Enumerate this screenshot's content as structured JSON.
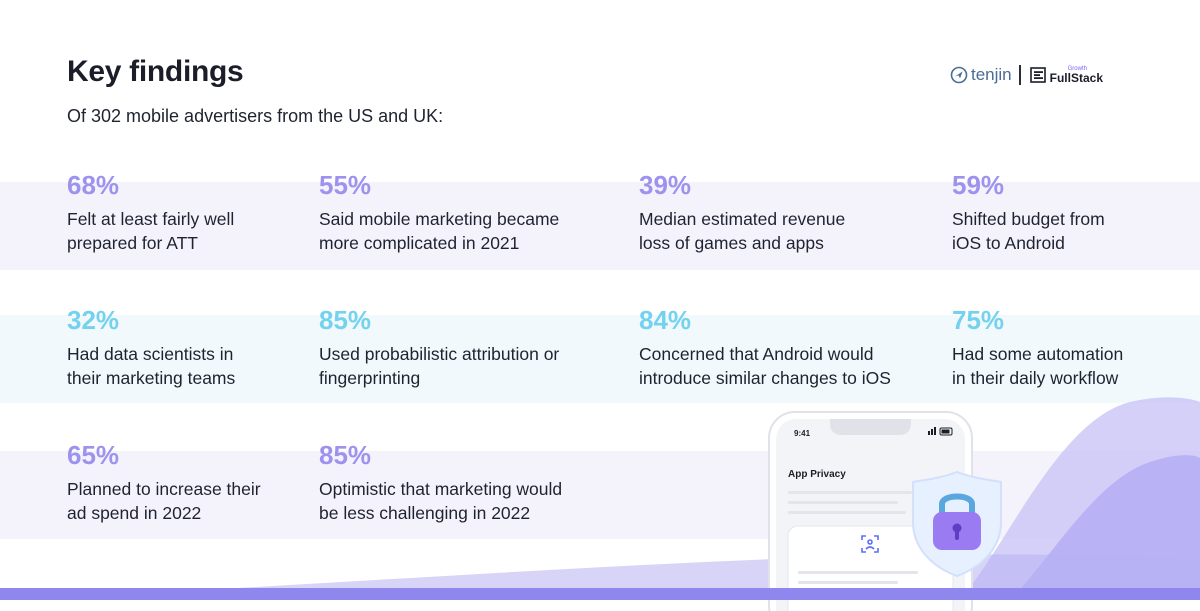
{
  "header": {
    "title": "Key findings",
    "subtitle": "Of 302 mobile advertisers from the US and UK:"
  },
  "brand": {
    "tenjin_label": "tenjin",
    "fullstack_small": "Growth",
    "fullstack_big": "FullStack"
  },
  "findings": [
    {
      "percent": "68%",
      "color": "purple",
      "line1": "Felt at least fairly well",
      "line2": "prepared for ATT"
    },
    {
      "percent": "55%",
      "color": "purple",
      "line1": "Said mobile marketing became",
      "line2": "more complicated in 2021"
    },
    {
      "percent": "39%",
      "color": "purple",
      "line1": "Median estimated revenue",
      "line2": "loss of games and apps"
    },
    {
      "percent": "59%",
      "color": "purple",
      "line1": "Shifted budget from",
      "line2": "iOS to Android"
    },
    {
      "percent": "32%",
      "color": "cyan",
      "line1": "Had data scientists in",
      "line2": "their marketing teams"
    },
    {
      "percent": "85%",
      "color": "cyan",
      "line1": "Used probabilistic attribution or",
      "line2": "fingerprinting"
    },
    {
      "percent": "84%",
      "color": "cyan",
      "line1": "Concerned that Android would",
      "line2": "introduce similar changes to iOS"
    },
    {
      "percent": "75%",
      "color": "cyan",
      "line1": "Had some automation",
      "line2": "in their daily workflow"
    },
    {
      "percent": "65%",
      "color": "purple",
      "line1": "Planned to increase their",
      "line2": "ad spend in 2022"
    },
    {
      "percent": "85%",
      "color": "purple",
      "line1": "Optimistic that marketing would",
      "line2": "be less challenging in 2022"
    }
  ],
  "phone": {
    "time": "9:41",
    "screen_title": "App Privacy"
  },
  "colors": {
    "purple_accent": "#9b93ee",
    "cyan_accent": "#74d2ef",
    "band_purple": "#f4f3fc",
    "band_cyan": "#f1f9fc",
    "wave": "#8f87ee"
  }
}
